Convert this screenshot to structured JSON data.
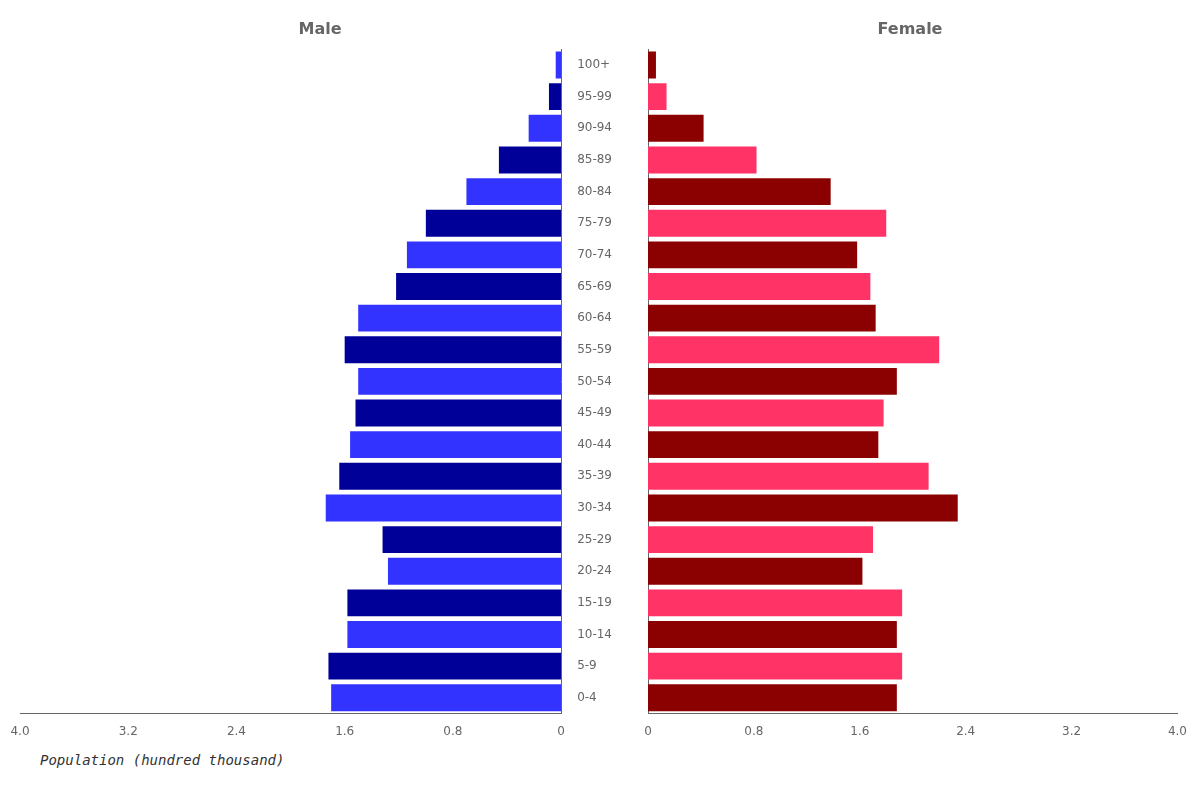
{
  "chart_data": [
    {
      "type": "bar",
      "orientation": "horizontal",
      "title": "Male",
      "xlabel": "Population (hundred thousand)",
      "categories": [
        "0-4",
        "5-9",
        "10-14",
        "15-19",
        "20-24",
        "25-29",
        "30-34",
        "35-39",
        "40-44",
        "45-49",
        "50-54",
        "55-59",
        "60-64",
        "65-69",
        "70-74",
        "75-79",
        "80-84",
        "85-89",
        "90-94",
        "95-99",
        "100+"
      ],
      "values": [
        1.7,
        1.72,
        1.58,
        1.58,
        1.28,
        1.32,
        1.74,
        1.64,
        1.56,
        1.52,
        1.5,
        1.6,
        1.5,
        1.22,
        1.14,
        1.0,
        0.7,
        0.46,
        0.24,
        0.09,
        0.04
      ],
      "colors": [
        "#3333FF",
        "#000099",
        "#3333FF",
        "#000099",
        "#3333FF",
        "#000099",
        "#3333FF",
        "#000099",
        "#3333FF",
        "#000099",
        "#3333FF",
        "#000099",
        "#3333FF",
        "#000099",
        "#3333FF",
        "#000099",
        "#3333FF",
        "#000099",
        "#3333FF",
        "#000099",
        "#3333FF"
      ],
      "xlim": [
        4.0,
        0
      ],
      "xticks": [
        0,
        0.8,
        1.6,
        2.4,
        3.2,
        {
          "value": 4.0,
          "label": "4.0"
        }
      ],
      "grid": false
    },
    {
      "type": "bar",
      "orientation": "horizontal",
      "title": "Female",
      "categories": [
        "0-4",
        "5-9",
        "10-14",
        "15-19",
        "20-24",
        "25-29",
        "30-34",
        "35-39",
        "40-44",
        "45-49",
        "50-54",
        "55-59",
        "60-64",
        "65-69",
        "70-74",
        "75-79",
        "80-84",
        "85-89",
        "90-94",
        "95-99",
        "100+"
      ],
      "values": [
        1.88,
        1.92,
        1.88,
        1.92,
        1.62,
        1.7,
        2.34,
        2.12,
        1.74,
        1.78,
        1.88,
        2.2,
        1.72,
        1.68,
        1.58,
        1.8,
        1.38,
        0.82,
        0.42,
        0.14,
        0.06
      ],
      "colors": [
        "#8B0000",
        "#FF3366",
        "#8B0000",
        "#FF3366",
        "#8B0000",
        "#FF3366",
        "#8B0000",
        "#FF3366",
        "#8B0000",
        "#FF3366",
        "#8B0000",
        "#FF3366",
        "#8B0000",
        "#FF3366",
        "#8B0000",
        "#FF3366",
        "#8B0000",
        "#FF3366",
        "#8B0000",
        "#FF3366",
        "#8B0000"
      ],
      "xlim": [
        0,
        4.0
      ],
      "xticks": [
        0,
        0.8,
        1.6,
        2.4,
        3.2,
        {
          "value": 4.0,
          "label": "4.0"
        }
      ],
      "grid": false,
      "tick_labels": "x"
    }
  ]
}
